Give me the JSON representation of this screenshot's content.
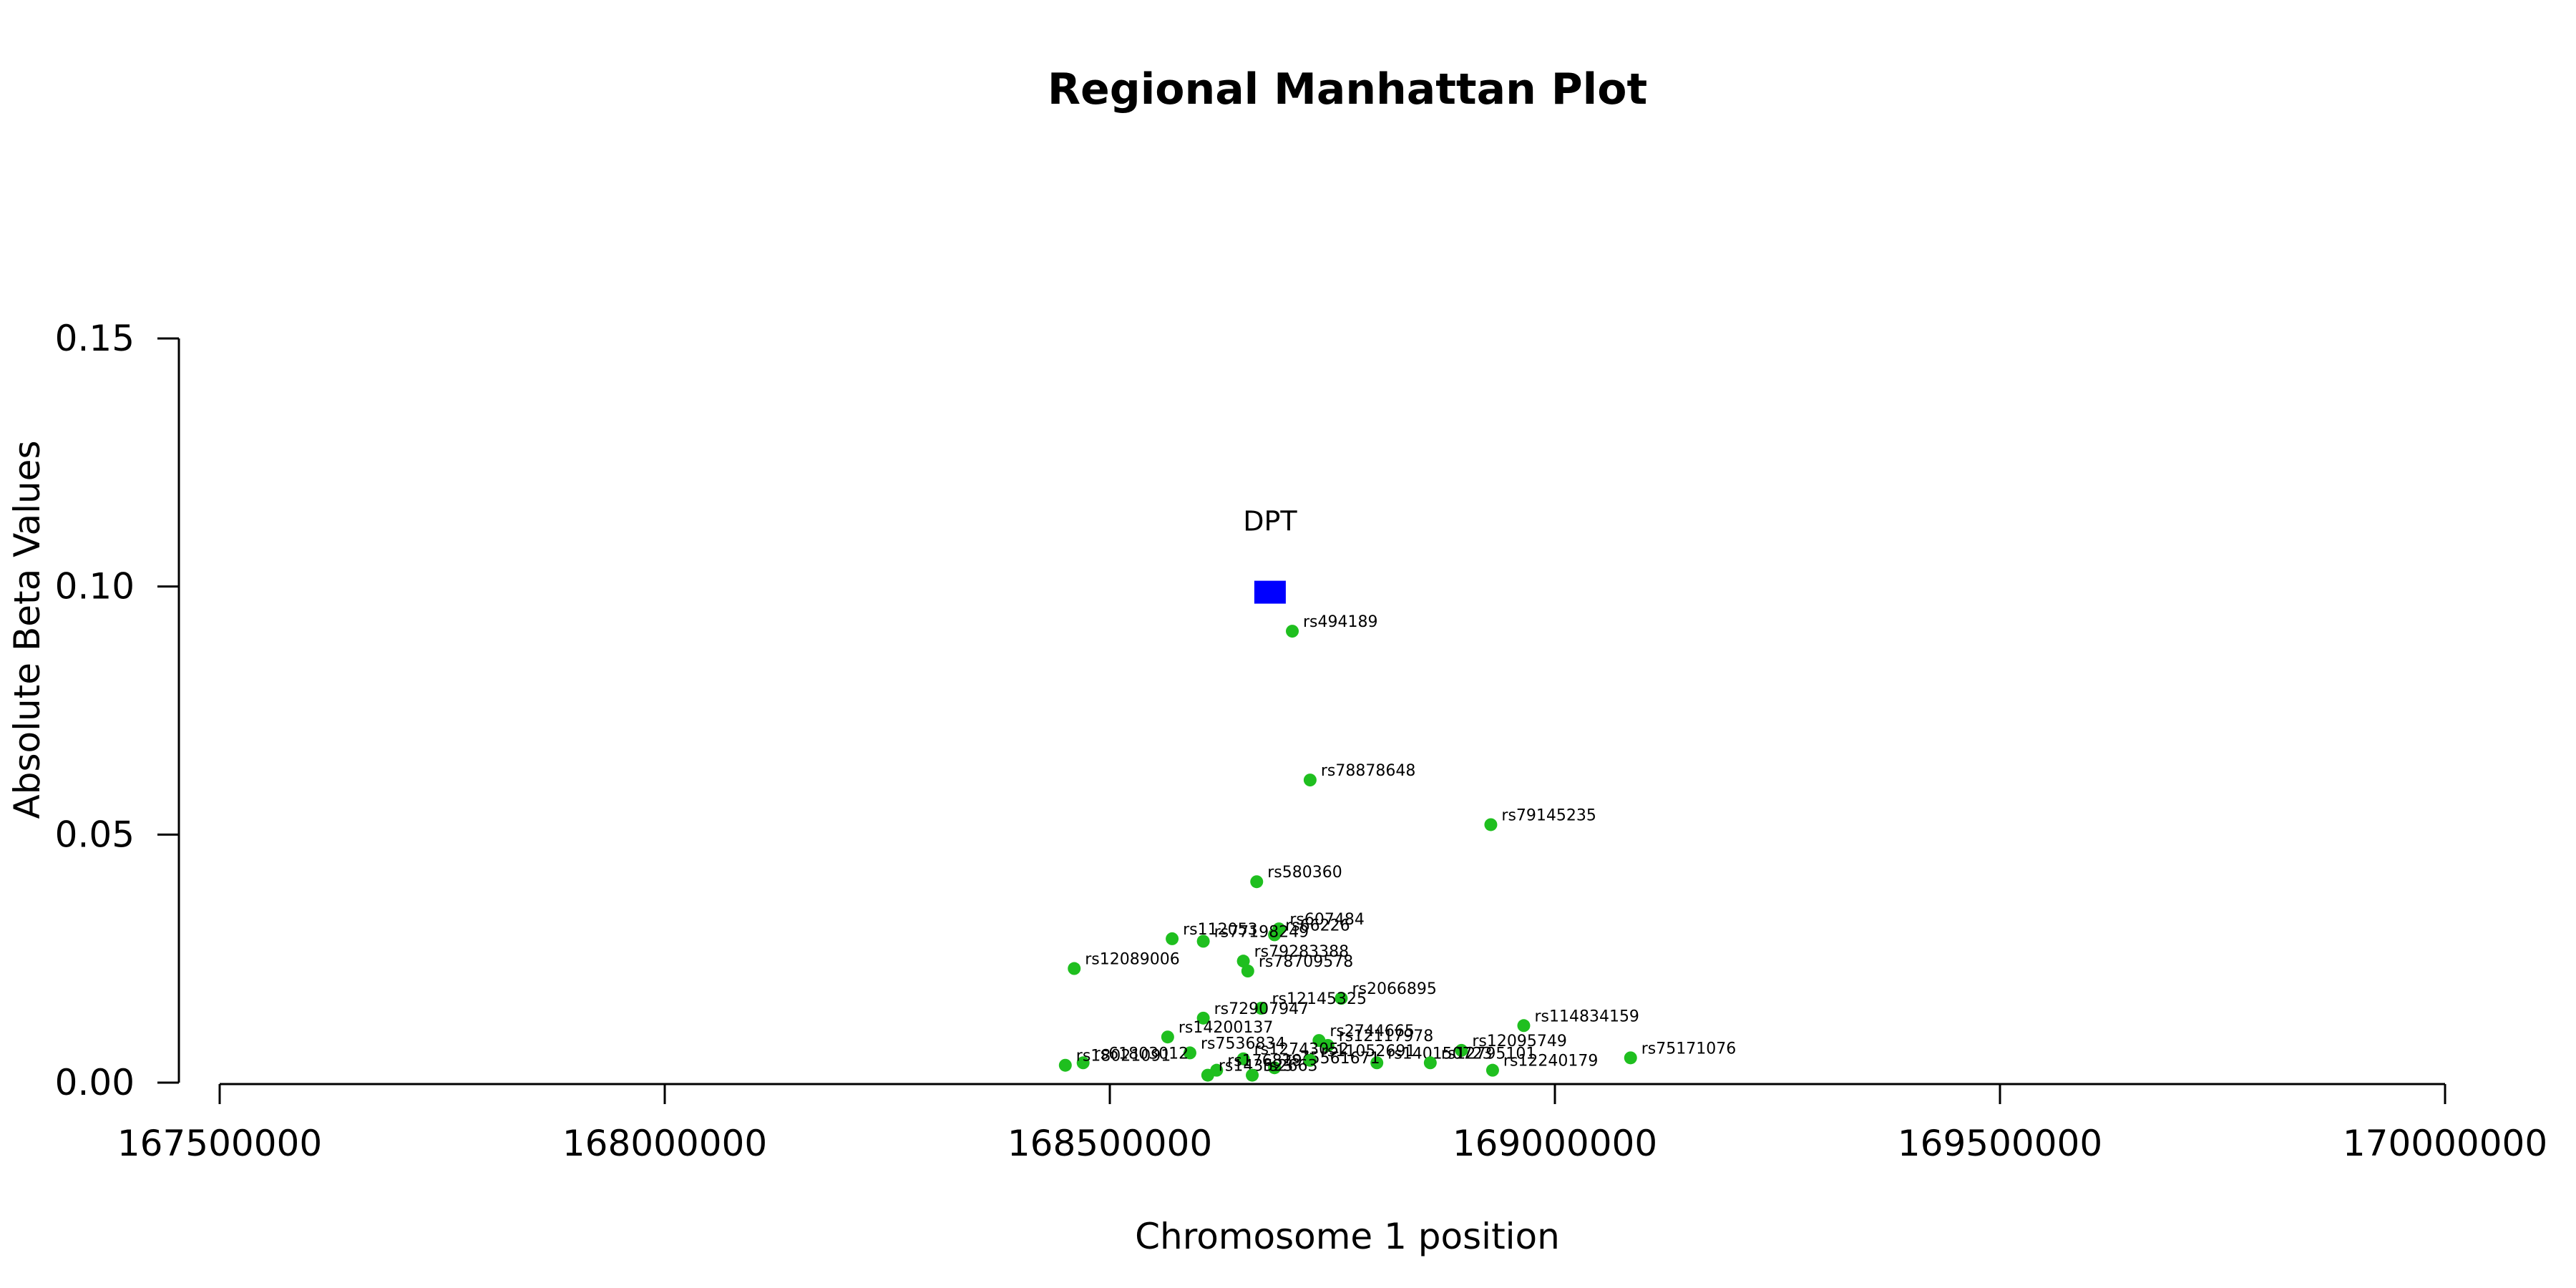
{
  "chart_data": {
    "type": "scatter",
    "title": "Regional Manhattan Plot",
    "xlabel": "Chromosome 1 position",
    "ylabel": "Absolute Beta Values",
    "xlim": [
      167500000,
      170000000
    ],
    "ylim": [
      0,
      0.15
    ],
    "x_ticks": [
      "167500000",
      "168000000",
      "168500000",
      "169000000",
      "169500000",
      "170000000"
    ],
    "y_ticks": [
      "0.00",
      "0.05",
      "0.10",
      "0.15"
    ],
    "grid": false,
    "colors": {
      "snp": "#1fbf1f",
      "gene": "#0000ff"
    },
    "gene": {
      "name": "DPT",
      "x": 168680000,
      "y": 0.099
    },
    "points": [
      {
        "label": "rs494189",
        "x": 168705000,
        "y": 0.091
      },
      {
        "label": "rs78878648",
        "x": 168725000,
        "y": 0.061
      },
      {
        "label": "rs79145235",
        "x": 168928000,
        "y": 0.052
      },
      {
        "label": "rs580360",
        "x": 168665000,
        "y": 0.0405
      },
      {
        "label": "rs607484",
        "x": 168690000,
        "y": 0.031
      },
      {
        "label": "rs112053",
        "x": 168570000,
        "y": 0.029
      },
      {
        "label": "rs66226",
        "x": 168685000,
        "y": 0.0298
      },
      {
        "label": "rs77198249",
        "x": 168605000,
        "y": 0.0285
      },
      {
        "label": "rs79283388",
        "x": 168650000,
        "y": 0.0245
      },
      {
        "label": "rs78709578",
        "x": 168655000,
        "y": 0.0225
      },
      {
        "label": "rs12089006",
        "x": 168460000,
        "y": 0.023
      },
      {
        "label": "rs2066895",
        "x": 168760000,
        "y": 0.017
      },
      {
        "label": "rs12145325",
        "x": 168670000,
        "y": 0.015
      },
      {
        "label": "rs72907947",
        "x": 168605000,
        "y": 0.013
      },
      {
        "label": "rs114834159",
        "x": 168965000,
        "y": 0.0115
      },
      {
        "label": "rs14200137",
        "x": 168565000,
        "y": 0.0092
      },
      {
        "label": "rs2744665",
        "x": 168735000,
        "y": 0.0085
      },
      {
        "label": "rs12117978",
        "x": 168745000,
        "y": 0.0075
      },
      {
        "label": "rs12095749",
        "x": 168895000,
        "y": 0.0065
      },
      {
        "label": "rs7536834",
        "x": 168590000,
        "y": 0.006
      },
      {
        "label": "rs75171076",
        "x": 169085000,
        "y": 0.005
      },
      {
        "label": "rs12743052",
        "x": 168650000,
        "y": 0.0048
      },
      {
        "label": "rs140150723",
        "x": 168800000,
        "y": 0.004
      },
      {
        "label": "rs12795101",
        "x": 168860000,
        "y": 0.004
      },
      {
        "label": "rs61803012",
        "x": 168470000,
        "y": 0.004
      },
      {
        "label": "rs18021091",
        "x": 168450000,
        "y": 0.0035
      },
      {
        "label": "rs75561671",
        "x": 168685000,
        "y": 0.003
      },
      {
        "label": "rs12240179",
        "x": 168930000,
        "y": 0.0025
      },
      {
        "label": "rs1768296",
        "x": 168620000,
        "y": 0.0025
      },
      {
        "label": "rs11052691",
        "x": 168725000,
        "y": 0.0045
      },
      {
        "label": "rs143523",
        "x": 168610000,
        "y": 0.0015
      },
      {
        "label": "rs2663",
        "x": 168660000,
        "y": 0.0015
      }
    ]
  }
}
